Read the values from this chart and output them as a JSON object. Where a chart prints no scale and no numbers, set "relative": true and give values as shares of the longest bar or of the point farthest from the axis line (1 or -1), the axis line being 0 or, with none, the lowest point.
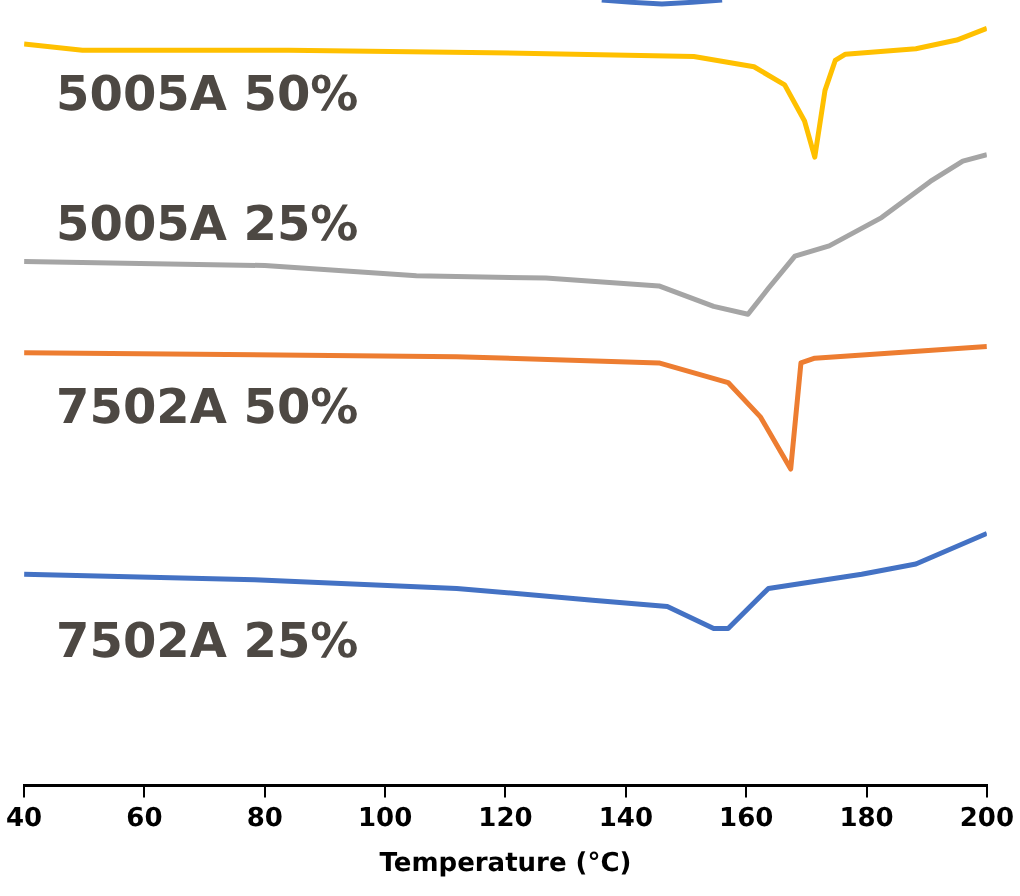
{
  "chart_data": {
    "type": "line",
    "relative": true,
    "xlabel": "Temperature (°C)",
    "xlim": [
      40,
      200
    ],
    "xticks": [
      40,
      60,
      80,
      100,
      120,
      140,
      160,
      180,
      200
    ],
    "grid": false,
    "legend": false,
    "marker": "none",
    "series": [
      {
        "color": "#4472c4",
        "x": [
          136,
          141,
          146,
          151,
          156
        ],
        "values": [
          1,
          0.997,
          0.995,
          0.997,
          1
        ]
      },
      {
        "name": "5005A 50%",
        "color": "#ffc000",
        "x": [
          40,
          49.7,
          84,
          117.6,
          151.3,
          161.3,
          166.4,
          169.7,
          171.4,
          173.1,
          174.8,
          176.5,
          188.2,
          195,
          200
        ],
        "values": [
          0.944,
          0.936,
          0.936,
          0.933,
          0.928,
          0.915,
          0.892,
          0.846,
          0.8,
          0.885,
          0.923,
          0.931,
          0.938,
          0.949,
          0.964
        ]
      },
      {
        "name": "5005A 25%",
        "color": "#a5a5a5",
        "x": [
          40,
          80,
          105.2,
          126.7,
          145.5,
          154.6,
          160.3,
          163.7,
          168.1,
          173.8,
          182.5,
          190.6,
          196,
          200
        ],
        "values": [
          0.667,
          0.662,
          0.649,
          0.646,
          0.636,
          0.61,
          0.6,
          0.633,
          0.674,
          0.687,
          0.723,
          0.769,
          0.795,
          0.803
        ]
      },
      {
        "name": "7502A 50%",
        "color": "#ed7d31",
        "x": [
          40,
          111.9,
          145.5,
          157,
          162.4,
          167.4,
          169.1,
          171.4,
          200
        ],
        "values": [
          0.551,
          0.546,
          0.538,
          0.513,
          0.469,
          0.403,
          0.538,
          0.544,
          0.559
        ]
      },
      {
        "name": "7502A 25%",
        "color": "#4472c4",
        "x": [
          40,
          78.3,
          111.9,
          134.5,
          146.9,
          154.6,
          157,
          163.7,
          179.2,
          188.2,
          200
        ],
        "values": [
          0.269,
          0.262,
          0.251,
          0.236,
          0.228,
          0.2,
          0.2,
          0.251,
          0.269,
          0.282,
          0.321
        ]
      }
    ]
  }
}
